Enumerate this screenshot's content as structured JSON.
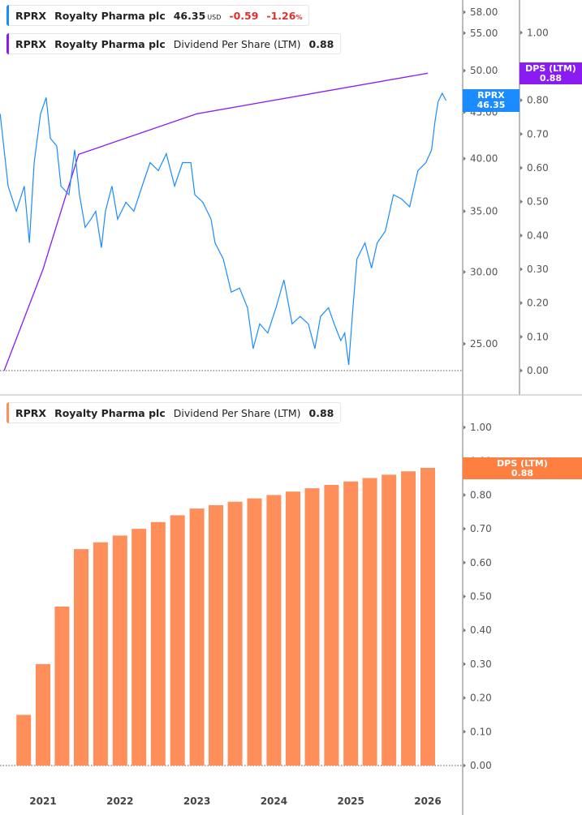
{
  "colors": {
    "price": "#1a8cff",
    "dps_line": "#8a1cf2",
    "bars": "#ff8f5a",
    "bar_tag": "#ff7f40",
    "change": "#e0302c"
  },
  "legend_top_price": {
    "ticker": "RPRX",
    "company": "Royalty Pharma plc",
    "price": "46.35",
    "currency": "USD",
    "change": "-0.59",
    "change_pct": "-1.26",
    "pct_sign": "%"
  },
  "legend_top_dps": {
    "ticker": "RPRX",
    "company": "Royalty Pharma plc",
    "metric": "Dividend Per Share (LTM)",
    "value": "0.88"
  },
  "legend_bottom": {
    "ticker": "RPRX",
    "company": "Royalty Pharma plc",
    "metric": "Dividend Per Share (LTM)",
    "value": "0.88"
  },
  "tags": {
    "price_label": "RPRX",
    "price_value": "46.35",
    "dps_label": "DPS (LTM)",
    "dps_value": "0.88",
    "bottom_label": "DPS (LTM)",
    "bottom_value": "0.88"
  },
  "chart_data": [
    {
      "type": "line",
      "panel": "top",
      "price_axis": {
        "scale": "log",
        "range": [
          23.2,
          60
        ],
        "ticks": [
          "58.00",
          "55.00",
          "50.00",
          "45.00",
          "40.00",
          "35.00",
          "30.00",
          "25.00"
        ]
      },
      "dps_axis": {
        "range": [
          -0.02,
          1.1
        ],
        "ticks": [
          "1.00",
          "0.80",
          "0.70",
          "0.60",
          "0.50",
          "0.40",
          "0.30",
          "0.20",
          "0.10",
          "0.00"
        ]
      },
      "series": [
        {
          "name": "RPRX",
          "axis": "price",
          "points": [
            [
              "2020-06-11",
              44.8
            ],
            [
              "2020-07-19",
              37.3
            ],
            [
              "2020-08-27",
              35.0
            ],
            [
              "2020-10-04",
              37.3
            ],
            [
              "2020-10-28",
              32.3
            ],
            [
              "2020-11-20",
              39.6
            ],
            [
              "2020-12-20",
              44.8
            ],
            [
              "2021-01-16",
              46.7
            ],
            [
              "2021-02-05",
              42.1
            ],
            [
              "2021-03-07",
              41.3
            ],
            [
              "2021-03-27",
              37.3
            ],
            [
              "2021-05-04",
              36.5
            ],
            [
              "2021-05-31",
              40.9
            ],
            [
              "2021-06-23",
              36.5
            ],
            [
              "2021-07-20",
              33.6
            ],
            [
              "2021-08-16",
              34.3
            ],
            [
              "2021-09-08",
              35.0
            ],
            [
              "2021-10-05",
              31.9
            ],
            [
              "2021-10-24",
              35.0
            ],
            [
              "2021-11-24",
              37.3
            ],
            [
              "2021-12-21",
              34.3
            ],
            [
              "2022-01-29",
              35.8
            ],
            [
              "2022-03-08",
              35.0
            ],
            [
              "2022-04-16",
              37.3
            ],
            [
              "2022-05-24",
              39.6
            ],
            [
              "2022-07-02",
              38.8
            ],
            [
              "2022-08-09",
              40.5
            ],
            [
              "2022-09-17",
              37.3
            ],
            [
              "2022-10-25",
              39.6
            ],
            [
              "2022-12-03",
              39.6
            ],
            [
              "2022-12-22",
              36.5
            ],
            [
              "2023-01-29",
              35.8
            ],
            [
              "2023-03-09",
              34.3
            ],
            [
              "2023-03-28",
              32.3
            ],
            [
              "2023-05-06",
              31.0
            ],
            [
              "2023-06-13",
              28.5
            ],
            [
              "2023-07-22",
              28.8
            ],
            [
              "2023-08-29",
              27.4
            ],
            [
              "2023-09-25",
              24.7
            ],
            [
              "2023-10-26",
              26.3
            ],
            [
              "2023-12-03",
              25.7
            ],
            [
              "2024-01-11",
              27.4
            ],
            [
              "2024-02-18",
              29.4
            ],
            [
              "2024-03-28",
              26.3
            ],
            [
              "2024-05-05",
              26.8
            ],
            [
              "2024-06-13",
              26.3
            ],
            [
              "2024-07-14",
              24.7
            ],
            [
              "2024-08-10",
              26.8
            ],
            [
              "2024-09-17",
              27.4
            ],
            [
              "2024-10-14",
              26.3
            ],
            [
              "2024-11-14",
              25.2
            ],
            [
              "2024-12-03",
              25.7
            ],
            [
              "2024-12-22",
              23.7
            ],
            [
              "2025-01-11",
              27.4
            ],
            [
              "2025-01-30",
              31.0
            ],
            [
              "2025-03-09",
              32.3
            ],
            [
              "2025-04-09",
              30.3
            ],
            [
              "2025-05-06",
              32.3
            ],
            [
              "2025-06-14",
              33.3
            ],
            [
              "2025-07-22",
              36.5
            ],
            [
              "2025-08-30",
              36.1
            ],
            [
              "2025-10-07",
              35.4
            ],
            [
              "2025-11-15",
              38.8
            ],
            [
              "2025-12-23",
              39.6
            ],
            [
              "2026-01-19",
              40.9
            ],
            [
              "2026-02-04",
              43.9
            ],
            [
              "2026-02-19",
              46.2
            ],
            [
              "2026-03-10",
              47.2
            ],
            [
              "2026-03-29",
              46.35
            ]
          ]
        },
        {
          "name": "DPS (LTM)",
          "axis": "dps",
          "points": [
            [
              "2020-06-30",
              0.0
            ],
            [
              "2021-01-01",
              0.3
            ],
            [
              "2021-06-19",
              0.64
            ],
            [
              "2023-01-01",
              0.76
            ],
            [
              "2026-01-01",
              0.88
            ]
          ]
        }
      ]
    },
    {
      "type": "bar",
      "panel": "bottom",
      "name": "DPS (LTM)",
      "yaxis": {
        "range": [
          -0.02,
          1.08
        ],
        "ticks": [
          "1.00",
          "0.90",
          "0.80",
          "0.70",
          "0.60",
          "0.50",
          "0.40",
          "0.30",
          "0.20",
          "0.10",
          "0.00"
        ]
      },
      "categories": [
        "2020-10-01",
        "2021-01-01",
        "2021-04-01",
        "2021-07-01",
        "2021-10-01",
        "2022-01-01",
        "2022-04-01",
        "2022-07-01",
        "2022-10-01",
        "2023-01-01",
        "2023-04-01",
        "2023-07-01",
        "2023-10-01",
        "2024-01-01",
        "2024-04-01",
        "2024-07-01",
        "2024-10-01",
        "2025-01-01",
        "2025-04-01",
        "2025-07-01",
        "2025-10-01",
        "2026-01-01"
      ],
      "values": [
        0.15,
        0.3,
        0.47,
        0.64,
        0.66,
        0.68,
        0.7,
        0.72,
        0.74,
        0.76,
        0.77,
        0.78,
        0.79,
        0.8,
        0.81,
        0.82,
        0.83,
        0.84,
        0.85,
        0.86,
        0.87,
        0.88
      ],
      "xaxis": {
        "ticks": [
          "2021",
          "2022",
          "2023",
          "2024",
          "2025",
          "2026"
        ]
      }
    }
  ]
}
